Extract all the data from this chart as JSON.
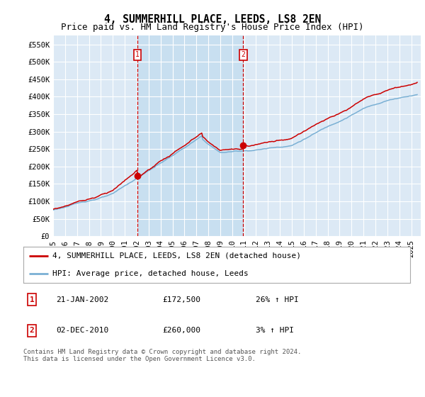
{
  "title": "4, SUMMERHILL PLACE, LEEDS, LS8 2EN",
  "subtitle": "Price paid vs. HM Land Registry's House Price Index (HPI)",
  "ylabel_ticks": [
    0,
    50000,
    100000,
    150000,
    200000,
    250000,
    300000,
    350000,
    400000,
    450000,
    500000,
    550000
  ],
  "ylabel_labels": [
    "£0",
    "£50K",
    "£100K",
    "£150K",
    "£200K",
    "£250K",
    "£300K",
    "£350K",
    "£400K",
    "£450K",
    "£500K",
    "£550K"
  ],
  "ylim": [
    0,
    575000
  ],
  "xlim_start": 1995.0,
  "xlim_end": 2025.8,
  "background_color": "#ffffff",
  "plot_bg_color": "#dce9f5",
  "shaded_bg_color": "#c8dff0",
  "grid_color": "#ffffff",
  "red_line_color": "#cc0000",
  "blue_line_color": "#7ab0d4",
  "vline_color": "#cc0000",
  "marker_fill": "#cc0000",
  "transaction1_x": 2002.055,
  "transaction1_y": 172500,
  "transaction2_x": 2010.92,
  "transaction2_y": 260000,
  "legend_label_red": "4, SUMMERHILL PLACE, LEEDS, LS8 2EN (detached house)",
  "legend_label_blue": "HPI: Average price, detached house, Leeds",
  "table_rows": [
    {
      "num": "1",
      "date": "21-JAN-2002",
      "price": "£172,500",
      "hpi": "26% ↑ HPI"
    },
    {
      "num": "2",
      "date": "02-DEC-2010",
      "price": "£260,000",
      "hpi": "3% ↑ HPI"
    }
  ],
  "footer": "Contains HM Land Registry data © Crown copyright and database right 2024.\nThis data is licensed under the Open Government Licence v3.0.",
  "title_fontsize": 10.5,
  "subtitle_fontsize": 9,
  "tick_fontsize": 7.5,
  "legend_fontsize": 8
}
